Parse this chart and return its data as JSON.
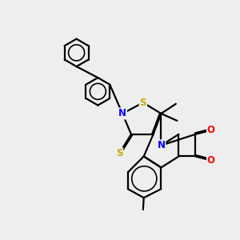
{
  "bg_color": "#eeeeee",
  "atom_colors": {
    "N": "#0000ff",
    "S": "#ccaa00",
    "O": "#ff0000"
  },
  "bond_lw": 1.6,
  "double_off": 0.055,
  "figsize": [
    3.0,
    3.0
  ],
  "dpi": 100
}
